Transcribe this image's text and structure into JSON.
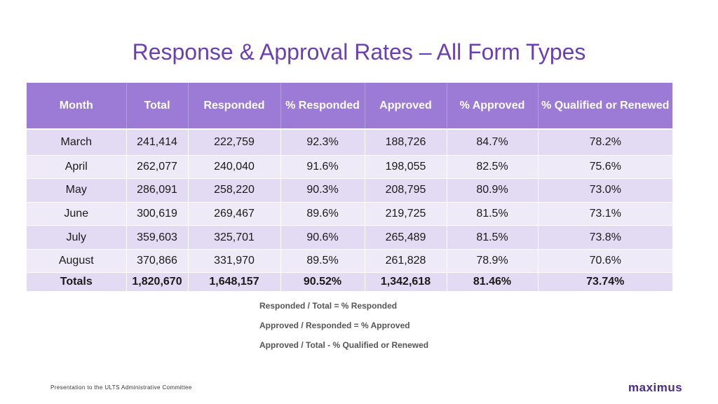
{
  "title": "Response & Approval Rates – All Form Types",
  "table": {
    "headers": [
      "Month",
      "Total",
      "Responded",
      "% Responded",
      "Approved",
      "% Approved",
      "% Qualified or Renewed"
    ],
    "rows": [
      [
        "March",
        "241,414",
        "222,759",
        "92.3%",
        "188,726",
        "84.7%",
        "78.2%"
      ],
      [
        "April",
        "262,077",
        "240,040",
        "91.6%",
        "198,055",
        "82.5%",
        "75.6%"
      ],
      [
        "May",
        "286,091",
        "258,220",
        "90.3%",
        "208,795",
        "80.9%",
        "73.0%"
      ],
      [
        "June",
        "300,619",
        "269,467",
        "89.6%",
        "219,725",
        "81.5%",
        "73.1%"
      ],
      [
        "July",
        "359,603",
        "325,701",
        "90.6%",
        "265,489",
        "81.5%",
        "73.8%"
      ],
      [
        "August",
        "370,866",
        "331,970",
        "89.5%",
        "261,828",
        "78.9%",
        "70.6%"
      ]
    ],
    "totals": [
      "Totals",
      "1,820,670",
      "1,648,157",
      "90.52%",
      "1,342,618",
      "81.46%",
      "73.74%"
    ]
  },
  "notes": [
    "Responded / Total = % Responded",
    "Approved / Responded = % Approved",
    "Approved / Total - % Qualified or Renewed"
  ],
  "footer": "Presentation to the ULTS Administrative Committee",
  "logo": "maximus"
}
